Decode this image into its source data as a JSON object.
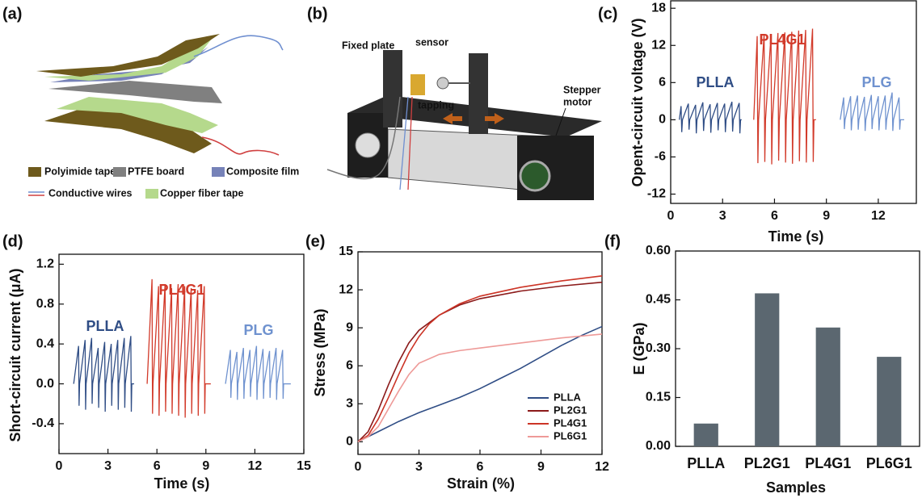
{
  "diagrams": {
    "a": {
      "label": "(a)",
      "legend": [
        {
          "label": "Polyimide tape",
          "colors": [
            "#6e5a1c"
          ]
        },
        {
          "label": "PTFE board",
          "colors": [
            "#808080"
          ]
        },
        {
          "label": "Composite film",
          "colors": [
            "#7682b8"
          ]
        },
        {
          "label": "Conductive wires",
          "colors": [
            "#6f8fd0",
            "#d04040"
          ]
        },
        {
          "label": "Copper fiber tape",
          "colors": [
            "#b5d98c"
          ]
        }
      ]
    },
    "b": {
      "label": "(b)",
      "callouts": [
        "Fixed plate",
        "sensor",
        "tapping"
      ],
      "motor": [
        "Stepper",
        "motor"
      ]
    }
  },
  "chart_data": [
    {
      "type": "line",
      "label": "(c)",
      "ylabel": "Opent-circuit voltage (V)",
      "xlabel": "Time (s)",
      "xlim": [
        0,
        14.2
      ],
      "ylim": [
        -13.5,
        19.2
      ],
      "xticks": [
        0,
        3,
        6,
        9,
        12
      ],
      "yticks": [
        -12,
        -6,
        0,
        6,
        12,
        18
      ],
      "legend": false,
      "series": [
        {
          "name": "PLLA",
          "color": "#2f4d85",
          "x": [
            0.5,
            0.6,
            0.64,
            0.68,
            1.02,
            1.06,
            1.1,
            1.44,
            1.48,
            1.52,
            1.86,
            1.9,
            1.94,
            2.28,
            2.32,
            2.36,
            2.7,
            2.74,
            2.78,
            3.12,
            3.16,
            3.2,
            3.54,
            3.58,
            3.62,
            3.96,
            4.0,
            4.04,
            4.1
          ],
          "values": [
            0,
            2.2,
            -2.0,
            0,
            2.6,
            -1.6,
            0,
            2.4,
            -2.2,
            0,
            2.8,
            -1.8,
            0,
            2.5,
            -2.1,
            0,
            2.7,
            -1.7,
            0,
            2.6,
            -2.0,
            0,
            2.9,
            -1.9,
            0,
            2.7,
            -2.2,
            0,
            0
          ]
        },
        {
          "name": "PL4G1",
          "color": "#d23a2a",
          "x": [
            4.8,
            5.0,
            5.04,
            5.08,
            5.4,
            5.44,
            5.48,
            5.8,
            5.84,
            5.88,
            6.2,
            6.24,
            6.28,
            6.6,
            6.64,
            6.68,
            7.0,
            7.04,
            7.08,
            7.4,
            7.44,
            7.48,
            7.8,
            7.84,
            7.88,
            8.2,
            8.24,
            8.28,
            8.4
          ],
          "values": [
            0,
            13.5,
            -7.0,
            0,
            13.8,
            -6.8,
            0,
            13.7,
            -7.2,
            0,
            14.0,
            -6.6,
            0,
            14.1,
            -6.9,
            0,
            14.2,
            -7.1,
            0,
            14.4,
            -6.7,
            0,
            14.5,
            -6.9,
            0,
            14.7,
            -6.8,
            0,
            0
          ]
        },
        {
          "name": "PLG",
          "color": "#6f92cf",
          "x": [
            9.8,
            10.0,
            10.04,
            10.08,
            10.4,
            10.44,
            10.48,
            10.8,
            10.84,
            10.88,
            11.2,
            11.24,
            11.28,
            11.6,
            11.64,
            11.68,
            12.0,
            12.04,
            12.08,
            12.4,
            12.44,
            12.48,
            12.8,
            12.84,
            12.88,
            13.2,
            13.24,
            13.28,
            13.5
          ],
          "values": [
            0,
            3.6,
            -1.5,
            0,
            3.8,
            -1.7,
            0,
            3.9,
            -1.6,
            0,
            3.7,
            -1.8,
            0,
            4.0,
            -1.5,
            0,
            3.8,
            -1.7,
            0,
            3.9,
            -1.6,
            0,
            4.4,
            -1.8,
            0,
            3.6,
            -1.6,
            0,
            0
          ]
        }
      ]
    },
    {
      "type": "line",
      "label": "(d)",
      "ylabel": "Short-circuit current (μA)",
      "xlabel": "Time (s)",
      "xlim": [
        0,
        15
      ],
      "ylim": [
        -0.7,
        1.3
      ],
      "xticks": [
        0,
        3,
        6,
        9,
        12,
        15
      ],
      "yticks": [
        -0.4,
        {
          "value": 0,
          "label": "0.0"
        },
        0.4,
        0.8,
        1.2
      ],
      "legend": false,
      "series": [
        {
          "name": "PLLA",
          "color": "#2f4d85",
          "x": [
            0.9,
            1.2,
            1.23,
            1.26,
            1.6,
            1.63,
            1.66,
            2.0,
            2.03,
            2.06,
            2.4,
            2.43,
            2.46,
            2.8,
            2.83,
            2.86,
            3.2,
            3.23,
            3.26,
            3.6,
            3.63,
            3.66,
            4.0,
            4.03,
            4.06,
            4.4,
            4.43,
            4.46,
            4.6
          ],
          "values": [
            0,
            0.38,
            -0.22,
            0,
            0.44,
            -0.26,
            0,
            0.46,
            -0.2,
            0,
            0.36,
            -0.24,
            0,
            0.42,
            -0.28,
            0,
            0.4,
            -0.22,
            0,
            0.44,
            -0.26,
            0,
            0.46,
            -0.24,
            0,
            0.48,
            -0.28,
            0,
            0
          ]
        },
        {
          "name": "PL4G1",
          "color": "#d23a2a",
          "x": [
            5.4,
            5.7,
            5.73,
            5.76,
            6.1,
            6.13,
            6.16,
            6.5,
            6.53,
            6.56,
            6.9,
            6.93,
            6.96,
            7.3,
            7.33,
            7.36,
            7.7,
            7.73,
            7.76,
            8.1,
            8.13,
            8.16,
            8.5,
            8.53,
            8.56,
            8.9,
            8.93,
            8.96,
            9.3
          ],
          "values": [
            0,
            1.05,
            -0.3,
            0,
            0.98,
            -0.32,
            0,
            1.0,
            -0.28,
            0,
            0.96,
            -0.3,
            0,
            1.0,
            -0.32,
            0,
            0.98,
            -0.34,
            0,
            0.96,
            -0.3,
            0,
            0.94,
            -0.32,
            0,
            0.98,
            -0.3,
            0,
            0
          ]
        },
        {
          "name": "PLG",
          "color": "#6f92cf",
          "x": [
            10.2,
            10.5,
            10.53,
            10.56,
            10.9,
            10.93,
            10.96,
            11.3,
            11.33,
            11.36,
            11.7,
            11.73,
            11.76,
            12.1,
            12.13,
            12.16,
            12.5,
            12.53,
            12.56,
            12.9,
            12.93,
            12.96,
            13.3,
            13.33,
            13.36,
            13.7,
            13.73,
            13.76,
            14.2
          ],
          "values": [
            0,
            0.34,
            -0.14,
            0,
            0.32,
            -0.16,
            0,
            0.36,
            -0.15,
            0,
            0.34,
            -0.13,
            0,
            0.38,
            -0.16,
            0,
            0.35,
            -0.15,
            0,
            0.33,
            -0.14,
            0,
            0.36,
            -0.16,
            0,
            0.34,
            -0.15,
            0,
            0
          ]
        }
      ]
    },
    {
      "type": "line",
      "label": "(e)",
      "ylabel": "Stress (MPa)",
      "xlabel": "Strain (%)",
      "xlim": [
        0,
        12
      ],
      "ylim": [
        -1,
        15
      ],
      "xticks": [
        0,
        3,
        6,
        9,
        12
      ],
      "yticks": [
        0,
        3,
        6,
        9,
        12,
        15
      ],
      "legend": "lower right",
      "series": [
        {
          "name": "PLLA",
          "color": "#2f4d85",
          "x": [
            0,
            1,
            2,
            3,
            4,
            5,
            6,
            7,
            8,
            9,
            10,
            11,
            12
          ],
          "values": [
            0,
            0.8,
            1.6,
            2.3,
            2.9,
            3.5,
            4.2,
            5,
            5.8,
            6.7,
            7.6,
            8.4,
            9.1
          ]
        },
        {
          "name": "PL2G1",
          "color": "#8b1a1a",
          "x": [
            0,
            0.5,
            1,
            1.5,
            2,
            2.5,
            3,
            4,
            5,
            6,
            8,
            10,
            12
          ],
          "values": [
            0,
            0.8,
            2.5,
            4.5,
            6.3,
            7.8,
            8.8,
            10,
            10.8,
            11.3,
            11.9,
            12.3,
            12.6
          ]
        },
        {
          "name": "PL4G1",
          "color": "#cc3426",
          "x": [
            0,
            0.5,
            1,
            1.5,
            2,
            2.5,
            3,
            3.5,
            4,
            5,
            6,
            8,
            10,
            12
          ],
          "values": [
            0,
            0.5,
            1.8,
            3.5,
            5.3,
            7,
            8.3,
            9.3,
            10,
            10.9,
            11.5,
            12.2,
            12.7,
            13.1
          ]
        },
        {
          "name": "PL6G1",
          "color": "#ee9a98",
          "x": [
            0,
            0.5,
            1,
            1.5,
            2,
            2.5,
            3,
            4,
            5,
            6,
            8,
            10,
            12
          ],
          "values": [
            0,
            0.4,
            1.2,
            2.6,
            4,
            5.3,
            6.2,
            6.9,
            7.2,
            7.4,
            7.8,
            8.2,
            8.5
          ]
        }
      ]
    },
    {
      "type": "bar",
      "label": "(f)",
      "ylabel": "E (GPa)",
      "xlabel": "Samples",
      "color": "#5b6770",
      "categories": [
        "PLLA",
        "PL2G1",
        "PL4G1",
        "PL6G1"
      ],
      "values": [
        0.07,
        0.47,
        0.365,
        0.275
      ],
      "ylim": [
        0,
        0.6
      ],
      "yticks": [
        {
          "value": 0,
          "label": "0.00"
        },
        {
          "value": 0.15,
          "label": "0.15"
        },
        {
          "value": 0.3,
          "label": "0.30"
        },
        {
          "value": 0.45,
          "label": "0.45"
        },
        {
          "value": 0.6,
          "label": "0.60"
        }
      ]
    }
  ]
}
